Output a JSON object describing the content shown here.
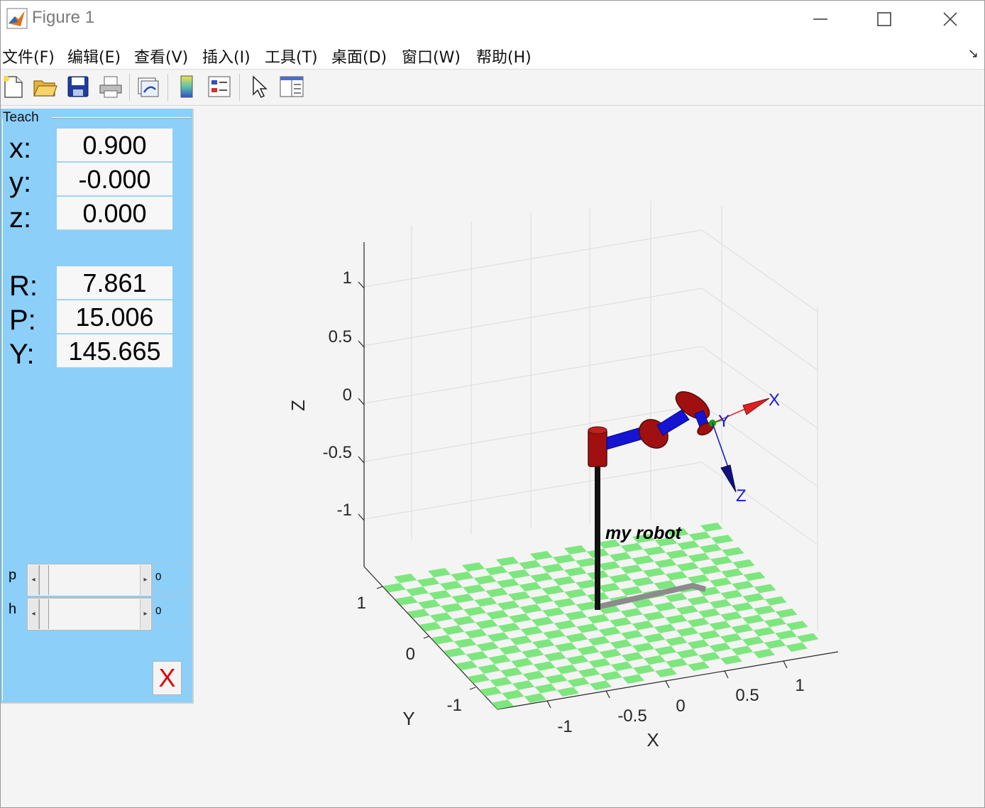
{
  "window": {
    "title": "Figure 1"
  },
  "menu": {
    "items": [
      "文件(F)",
      "编辑(E)",
      "查看(V)",
      "插入(I)",
      "工具(T)",
      "桌面(D)",
      "窗口(W)",
      "帮助(H)"
    ]
  },
  "toolbar": {
    "buttons": [
      "new-figure-icon",
      "open-icon",
      "save-icon",
      "print-icon",
      "link-icon",
      "colorbar-icon",
      "legend-icon",
      "pointer-icon",
      "property-inspector-icon"
    ]
  },
  "teach": {
    "title": "Teach",
    "x_label": "x:",
    "x_value": "0.900",
    "y_label": "y:",
    "y_value": "-0.000",
    "z_label": "z:",
    "z_value": "0.000",
    "R_label": "R:",
    "R_value": "7.861",
    "P_label": "P:",
    "P_value": "15.006",
    "Y_label": "Y:",
    "Y_value": "145.665",
    "sliders": [
      {
        "name": "p",
        "value": "0"
      },
      {
        "name": "h",
        "value": "0"
      }
    ],
    "close_label": "X"
  },
  "plot": {
    "robot_name": "my robot",
    "axes": {
      "x_label": "X",
      "y_label": "Y",
      "z_label": "Z",
      "x_ticks": [
        "-1",
        "-0.5",
        "0",
        "0.5",
        "1"
      ],
      "y_ticks": [
        "-1",
        "0",
        "1"
      ],
      "z_ticks": [
        "1",
        "0.5",
        "0",
        "-0.5",
        "-1"
      ]
    },
    "frame_labels": {
      "x": "X",
      "y": "Y",
      "z": "Z"
    },
    "colors": {
      "floor_tile": "#7ee67e",
      "link": "#1414d2",
      "joint": "#a01010",
      "frame_x": "#e02020",
      "frame_y": "#12a012",
      "frame_z": "#1010b0",
      "shadow": "#8c8c8c"
    }
  }
}
